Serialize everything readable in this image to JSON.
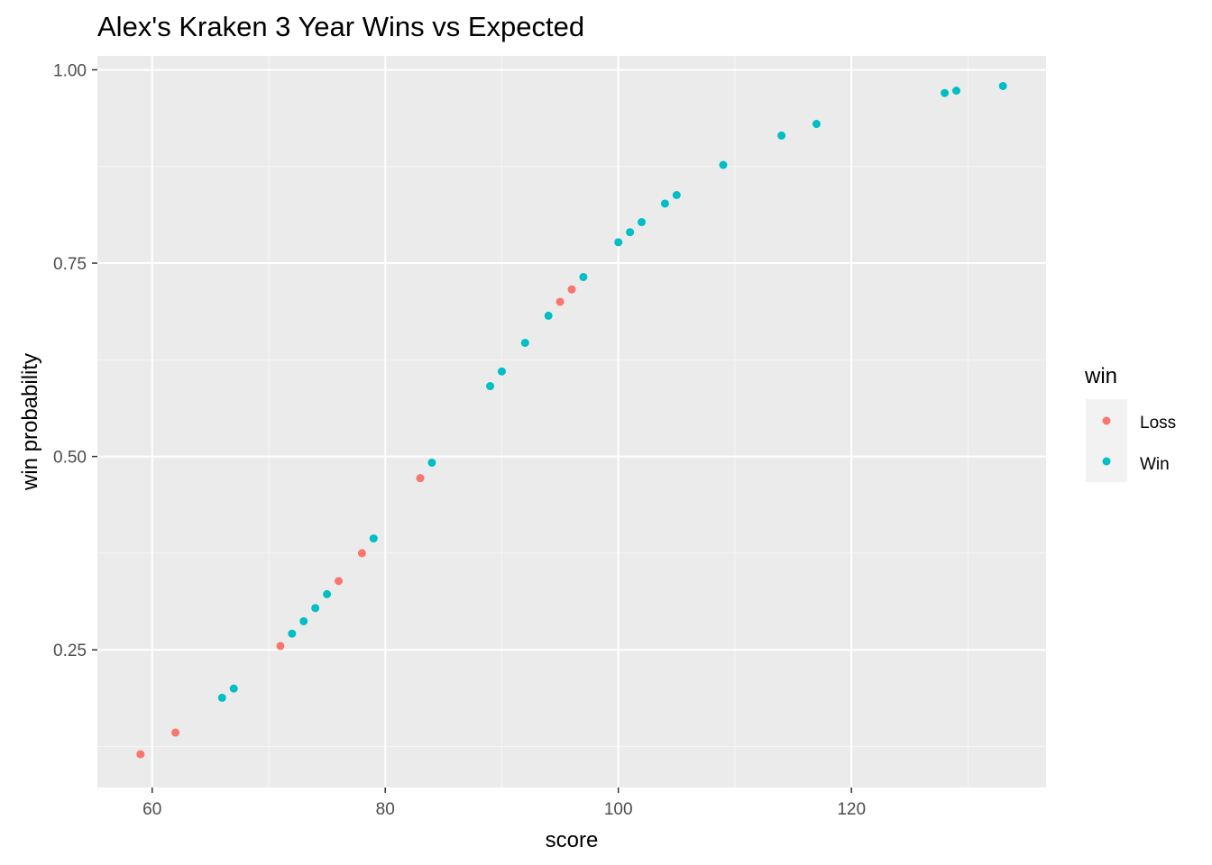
{
  "chart_data": {
    "type": "scatter",
    "title": "Alex's Kraken 3 Year Wins vs Expected",
    "xlabel": "score",
    "ylabel": "win probability",
    "xlim": [
      55.3,
      136.7
    ],
    "ylim": [
      0.072,
      1.018
    ],
    "x_ticks": [
      60,
      80,
      100,
      120
    ],
    "x_tick_labels": [
      "60",
      "80",
      "100",
      "120"
    ],
    "y_ticks": [
      0.25,
      0.5,
      0.75,
      1.0
    ],
    "y_tick_labels": [
      "0.25",
      "0.50",
      "0.75",
      "1.00"
    ],
    "grid": true,
    "legend": {
      "title": "win",
      "placement": "right",
      "entries": [
        {
          "label": "Loss",
          "color": "#F8766D"
        },
        {
          "label": "Win",
          "color": "#00BFC4"
        }
      ]
    },
    "series": [
      {
        "name": "Loss",
        "color": "#F8766D",
        "points": [
          {
            "x": 59,
            "y": 0.115
          },
          {
            "x": 62,
            "y": 0.143
          },
          {
            "x": 71,
            "y": 0.255
          },
          {
            "x": 76,
            "y": 0.339
          },
          {
            "x": 78,
            "y": 0.375
          },
          {
            "x": 83,
            "y": 0.472
          },
          {
            "x": 95,
            "y": 0.7
          },
          {
            "x": 96,
            "y": 0.716
          }
        ]
      },
      {
        "name": "Win",
        "color": "#00BFC4",
        "points": [
          {
            "x": 66,
            "y": 0.188
          },
          {
            "x": 67,
            "y": 0.2
          },
          {
            "x": 72,
            "y": 0.271
          },
          {
            "x": 73,
            "y": 0.287
          },
          {
            "x": 74,
            "y": 0.304
          },
          {
            "x": 75,
            "y": 0.322
          },
          {
            "x": 79,
            "y": 0.394
          },
          {
            "x": 84,
            "y": 0.492
          },
          {
            "x": 89,
            "y": 0.591
          },
          {
            "x": 90,
            "y": 0.61
          },
          {
            "x": 92,
            "y": 0.647
          },
          {
            "x": 94,
            "y": 0.682
          },
          {
            "x": 97,
            "y": 0.732
          },
          {
            "x": 100,
            "y": 0.777
          },
          {
            "x": 101,
            "y": 0.79
          },
          {
            "x": 102,
            "y": 0.803
          },
          {
            "x": 104,
            "y": 0.827
          },
          {
            "x": 105,
            "y": 0.838
          },
          {
            "x": 109,
            "y": 0.877
          },
          {
            "x": 114,
            "y": 0.915
          },
          {
            "x": 117,
            "y": 0.93
          },
          {
            "x": 128,
            "y": 0.97
          },
          {
            "x": 129,
            "y": 0.973
          },
          {
            "x": 133,
            "y": 0.979
          }
        ]
      }
    ]
  },
  "colors": {
    "panel_background": "#EBEBEB",
    "grid_major": "#FFFFFF",
    "grid_minor": "#F5F5F5",
    "tick_text": "#4D4D4D",
    "tick_mark": "#333333"
  }
}
